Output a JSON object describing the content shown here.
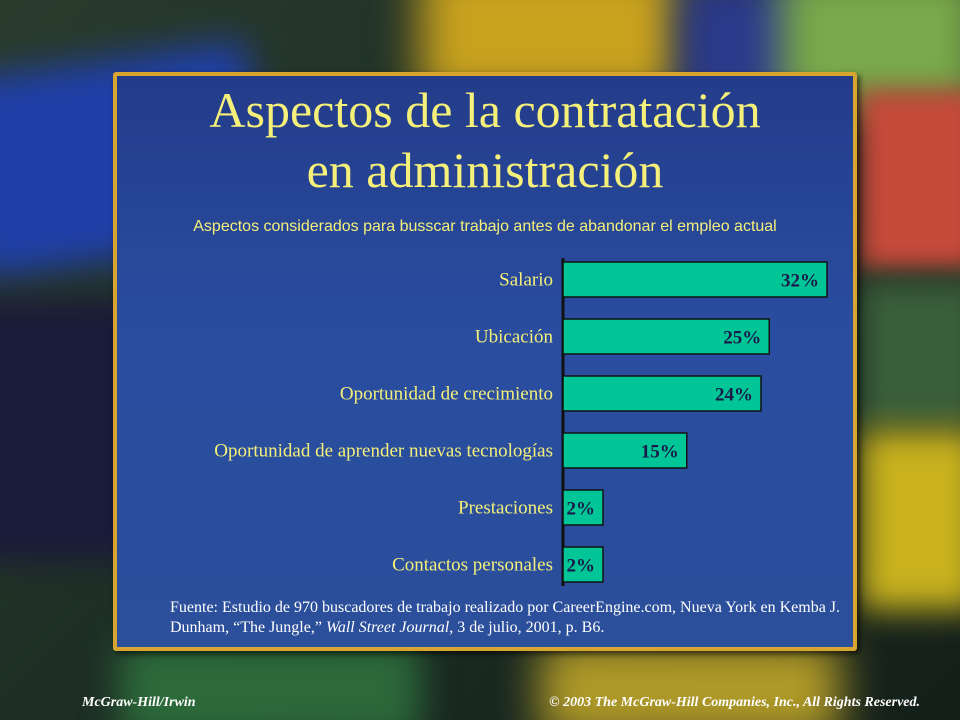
{
  "title_line1": "Aspectos de la contratación",
  "title_line2": "en administración",
  "subtitle": "Aspectos considerados para busscar trabajo antes de abandonar el empleo actual",
  "source": {
    "part1": "Fuente: Estudio de 970 buscadores de trabajo realizado por CareerEngine.com, Nueva York en Kemba J. Dunham, “The Jungle,” ",
    "journal": "Wall Street Journal",
    "part2": ", 3 de julio, 2001, p. B6."
  },
  "footer": {
    "left": "McGraw-Hill/Irwin",
    "right": "© 2003 The McGraw-Hill Companies, Inc., All Rights Reserved."
  },
  "colors": {
    "bar": "#00c596",
    "title": "#f4f07a",
    "panel_border": "#d9a531"
  },
  "chart_data": {
    "type": "bar",
    "orientation": "horizontal",
    "title": "Aspectos considerados para busscar trabajo antes de abandonar el empleo actual",
    "categories": [
      "Salario",
      "Ubicación",
      "Oportunidad de crecimiento",
      "Oportunidad de aprender nuevas tecnologías",
      "Prestaciones",
      "Contactos personales"
    ],
    "values": [
      32,
      25,
      24,
      15,
      2,
      2
    ],
    "value_labels": [
      "32%",
      "25%",
      "24%",
      "15%",
      "2%",
      "2%"
    ],
    "xlim": [
      0,
      32
    ],
    "grid": false,
    "legend": "none"
  }
}
